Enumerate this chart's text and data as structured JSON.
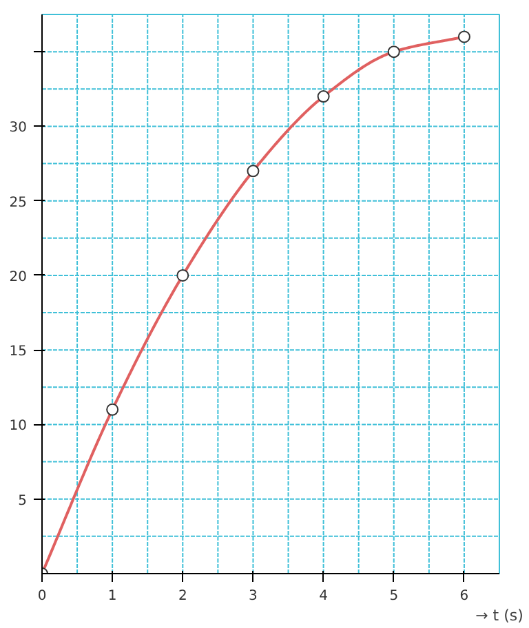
{
  "chart_data": {
    "type": "line",
    "xlabel": "→ t (s)",
    "x": [
      0,
      1,
      2,
      3,
      4,
      5,
      6
    ],
    "series": [
      {
        "color": "#e06060",
        "values": [
          0,
          11,
          20,
          27,
          32,
          35,
          36
        ]
      }
    ],
    "xlim": [
      0,
      6.5
    ],
    "ylim": [
      0,
      37.5
    ],
    "xticks": [
      0,
      1,
      2,
      3,
      4,
      5,
      6
    ],
    "yticks": [
      5,
      10,
      15,
      20,
      25,
      30,
      {
        "value": 35,
        "label": null
      }
    ],
    "grid": true,
    "marker": "circle",
    "line_style": "solid"
  }
}
